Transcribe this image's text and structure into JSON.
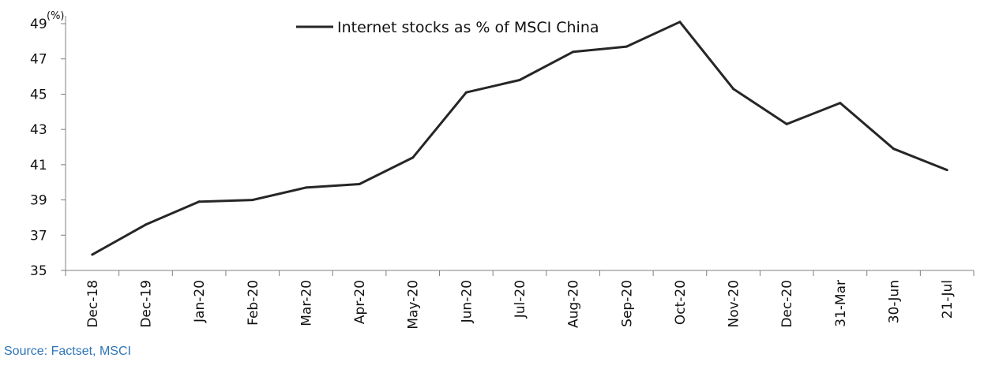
{
  "chart_data": {
    "type": "line",
    "title": "",
    "xlabel": "",
    "ylabel": "",
    "y_unit": "(%)",
    "categories": [
      "Dec-18",
      "Dec-19",
      "Jan-20",
      "Feb-20",
      "Mar-20",
      "Apr-20",
      "May-20",
      "Jun-20",
      "Jul-20",
      "Aug-20",
      "Sep-20",
      "Oct-20",
      "Nov-20",
      "Dec-20",
      "31-Mar",
      "30-Jun",
      "21-Jul"
    ],
    "series": [
      {
        "name": "Internet stocks as % of MSCI China",
        "color": "#262626",
        "values": [
          35.9,
          37.6,
          38.9,
          39.0,
          39.7,
          39.9,
          41.4,
          45.1,
          45.8,
          47.4,
          47.7,
          49.1,
          45.3,
          43.3,
          44.5,
          41.9,
          40.7
        ]
      }
    ],
    "ylim": [
      35,
      49
    ],
    "yticks": [
      35,
      37,
      39,
      41,
      43,
      45,
      47,
      49
    ],
    "grid": false,
    "legend_position": "top-center"
  },
  "source_text": "Source: Factset,  MSCI",
  "colors": {
    "line": "#262626",
    "axis": "#7f7f7f",
    "source": "#2e75b6"
  }
}
